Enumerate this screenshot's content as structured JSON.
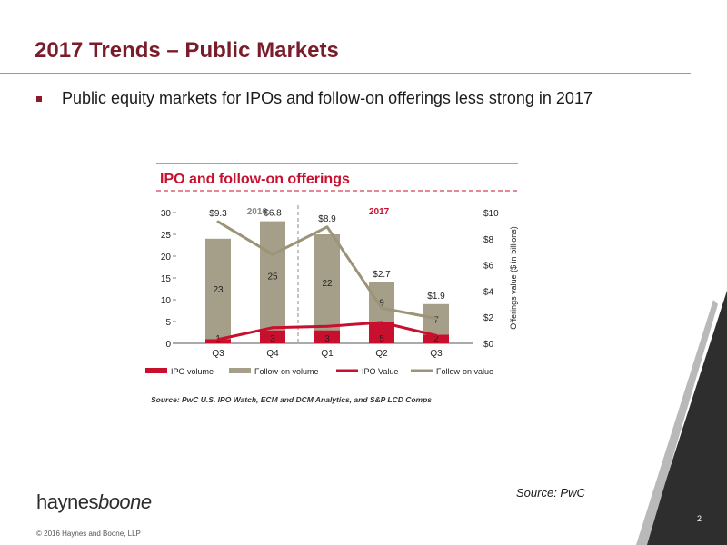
{
  "slide": {
    "title": "2017 Trends – Public Markets",
    "bullet": "Public equity markets for IPOs and follow-on offerings less strong in 2017",
    "source_right": "Source: PwC",
    "logo_a": "haynes",
    "logo_b": "boone",
    "copyright": "© 2016 Haynes and Boone, LLP",
    "page_number": "2"
  },
  "colors": {
    "title": "#7a1d2b",
    "ipo": "#c8102e",
    "followon": "#a59e88",
    "followon_line": "#9c9478",
    "ipo_line": "#c8102e"
  },
  "chart_data": {
    "type": "bar",
    "title": "IPO and follow-on offerings",
    "categories": [
      "Q3",
      "Q4",
      "Q1",
      "Q2",
      "Q3"
    ],
    "period_labels": [
      "2016",
      "2017"
    ],
    "series": [
      {
        "name": "IPO volume",
        "kind": "bar-stack",
        "axis": "left",
        "values": [
          1,
          3,
          3,
          5,
          2
        ]
      },
      {
        "name": "Follow-on volume",
        "kind": "bar-stack",
        "axis": "left",
        "values": [
          23,
          25,
          22,
          9,
          7
        ]
      },
      {
        "name": "IPO Value",
        "kind": "line",
        "axis": "right",
        "values": [
          0.3,
          1.2,
          1.3,
          1.6,
          0.6
        ]
      },
      {
        "name": "Follow-on value",
        "kind": "line",
        "axis": "right",
        "values": [
          9.3,
          6.8,
          8.9,
          2.7,
          1.9
        ]
      }
    ],
    "value_labels": [
      "$9.3",
      "$6.8",
      "$8.9",
      "$2.7",
      "$1.9"
    ],
    "y_left": {
      "min": 0,
      "max": 30,
      "ticks": [
        "0",
        "5",
        "10",
        "15",
        "20",
        "25",
        "30"
      ]
    },
    "y_right": {
      "min": 0,
      "max": 10,
      "label": "Offerings value ($ in billions)",
      "ticks": [
        "$0",
        "$2",
        "$4",
        "$6",
        "$8",
        "$10"
      ]
    },
    "legend": [
      "IPO volume",
      "Follow-on volume",
      "IPO Value",
      "Follow-on value"
    ],
    "source": "Source: PwC U.S. IPO Watch, ECM and DCM Analytics, and S&P LCD Comps",
    "grid": false,
    "legend_position": "bottom"
  }
}
